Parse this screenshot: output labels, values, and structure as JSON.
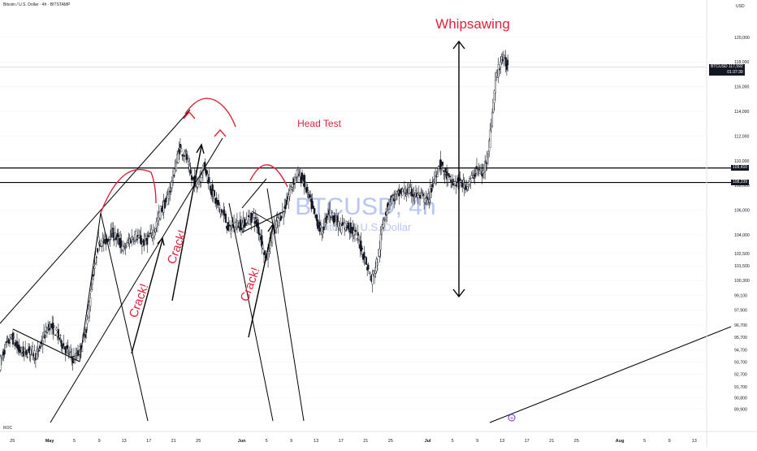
{
  "header": {
    "title": "Bitcoin / U.S. Dollar · 4h · BITSTAMP",
    "currency": "USD",
    "indicator": "ROC"
  },
  "watermark": {
    "symbol": "BTCUSD, 4h",
    "name": "Bitcoin / U.S. Dollar"
  },
  "price_tag": {
    "symbol": "BTCUSD",
    "price": "117,592",
    "countdown": "01:37:39"
  },
  "levels": [
    {
      "label": "109,410",
      "value": 109410
    },
    {
      "label": "108,239",
      "value": 108239
    }
  ],
  "annotations": {
    "whipsawing": "Whipsawing",
    "head_test": "Head Test",
    "crack": "Crack!"
  },
  "colors": {
    "annotation_red": "#e0223b",
    "candle": "#131722",
    "line": "#000000",
    "grid": "#d6d6d6",
    "watermark": "#b9c6f0"
  },
  "chart_data": {
    "type": "candlestick",
    "title": "Bitcoin / U.S. Dollar · 4h · BITSTAMP",
    "ylabel": "USD",
    "ylim": [
      88800,
      121700
    ],
    "y_ticks": [
      {
        "label": "120,000",
        "value": 120000
      },
      {
        "label": "118,000",
        "value": 118000
      },
      {
        "label": "116,000",
        "value": 116000
      },
      {
        "label": "114,000",
        "value": 114000
      },
      {
        "label": "112,000",
        "value": 112000
      },
      {
        "label": "110,000",
        "value": 110000
      },
      {
        "label": "108,000",
        "value": 108000
      },
      {
        "label": "106,000",
        "value": 106000
      },
      {
        "label": "104,000",
        "value": 104000
      },
      {
        "label": "102,500",
        "value": 102500
      },
      {
        "label": "101,500",
        "value": 101500
      },
      {
        "label": "100,300",
        "value": 100300
      },
      {
        "label": "99,100",
        "value": 99100
      },
      {
        "label": "97,900",
        "value": 97900
      },
      {
        "label": "96,700",
        "value": 96700
      },
      {
        "label": "95,700",
        "value": 95700
      },
      {
        "label": "94,700",
        "value": 94700
      },
      {
        "label": "93,700",
        "value": 93700
      },
      {
        "label": "92,700",
        "value": 92700
      },
      {
        "label": "91,700",
        "value": 91700
      },
      {
        "label": "90,800",
        "value": 90800
      },
      {
        "label": "89,900",
        "value": 89900
      }
    ],
    "x_ticks": [
      {
        "label": "25",
        "day": -6
      },
      {
        "label": "May",
        "day": 0
      },
      {
        "label": "5",
        "day": 4
      },
      {
        "label": "9",
        "day": 8
      },
      {
        "label": "13",
        "day": 12
      },
      {
        "label": "17",
        "day": 16
      },
      {
        "label": "21",
        "day": 20
      },
      {
        "label": "25",
        "day": 24
      },
      {
        "label": "Jun",
        "day": 31
      },
      {
        "label": "5",
        "day": 35
      },
      {
        "label": "9",
        "day": 39
      },
      {
        "label": "13",
        "day": 43
      },
      {
        "label": "17",
        "day": 47
      },
      {
        "label": "21",
        "day": 51
      },
      {
        "label": "25",
        "day": 55
      },
      {
        "label": "Jul",
        "day": 61
      },
      {
        "label": "5",
        "day": 65
      },
      {
        "label": "9",
        "day": 69
      },
      {
        "label": "13",
        "day": 73
      },
      {
        "label": "17",
        "day": 77
      },
      {
        "label": "21",
        "day": 81
      },
      {
        "label": "25",
        "day": 85
      },
      {
        "label": "Aug",
        "day": 92
      },
      {
        "label": "5",
        "day": 96
      },
      {
        "label": "9",
        "day": 100
      },
      {
        "label": "13",
        "day": 104
      }
    ],
    "x_range_days": [
      -8,
      106
    ],
    "last_price": 117592,
    "horizontal_levels": [
      109410,
      108239
    ],
    "series": [
      {
        "values": [
          [
            -8.0,
            93500
          ],
          [
            -7.0,
            95000
          ],
          [
            -6.0,
            95700
          ],
          [
            -5.0,
            94700
          ],
          [
            -4.0,
            94400
          ],
          [
            -3.0,
            94700
          ],
          [
            -2.0,
            94200
          ],
          [
            -1.0,
            95600
          ],
          [
            0.0,
            96700
          ],
          [
            1.0,
            96200
          ],
          [
            2.0,
            95300
          ],
          [
            3.0,
            94500
          ],
          [
            4.0,
            93900
          ],
          [
            5.0,
            94700
          ],
          [
            6.0,
            96400
          ],
          [
            7.0,
            100500
          ],
          [
            8.0,
            103500
          ],
          [
            9.0,
            103400
          ],
          [
            10.0,
            104200
          ],
          [
            11.0,
            103700
          ],
          [
            12.0,
            102800
          ],
          [
            13.0,
            103600
          ],
          [
            14.0,
            104000
          ],
          [
            15.0,
            103300
          ],
          [
            16.0,
            103700
          ],
          [
            17.0,
            104400
          ],
          [
            18.0,
            106000
          ],
          [
            19.0,
            106800
          ],
          [
            20.0,
            108700
          ],
          [
            21.0,
            111000
          ],
          [
            22.0,
            110500
          ],
          [
            23.0,
            108500
          ],
          [
            24.0,
            108200
          ],
          [
            25.0,
            109700
          ],
          [
            26.0,
            107900
          ],
          [
            27.0,
            106500
          ],
          [
            28.0,
            105800
          ],
          [
            29.0,
            104400
          ],
          [
            30.0,
            104900
          ],
          [
            31.0,
            104800
          ],
          [
            32.0,
            105200
          ],
          [
            33.0,
            105500
          ],
          [
            34.0,
            104100
          ],
          [
            35.0,
            101900
          ],
          [
            36.0,
            104200
          ],
          [
            37.0,
            105300
          ],
          [
            38.0,
            106100
          ],
          [
            39.0,
            107800
          ],
          [
            40.0,
            109000
          ],
          [
            41.0,
            108400
          ],
          [
            42.0,
            106900
          ],
          [
            43.0,
            105300
          ],
          [
            44.0,
            104200
          ],
          [
            45.0,
            105900
          ],
          [
            46.0,
            105400
          ],
          [
            47.0,
            104600
          ],
          [
            48.0,
            104800
          ],
          [
            49.0,
            104300
          ],
          [
            50.0,
            103500
          ],
          [
            51.0,
            101900
          ],
          [
            52.0,
            100300
          ],
          [
            53.0,
            102000
          ],
          [
            54.0,
            105400
          ],
          [
            55.0,
            106900
          ],
          [
            56.0,
            107100
          ],
          [
            57.0,
            107500
          ],
          [
            58.0,
            107500
          ],
          [
            59.0,
            107300
          ],
          [
            60.0,
            107100
          ],
          [
            61.0,
            106700
          ],
          [
            62.0,
            108300
          ],
          [
            63.0,
            109800
          ],
          [
            64.0,
            108800
          ],
          [
            65.0,
            108100
          ],
          [
            66.0,
            108300
          ],
          [
            67.0,
            108000
          ],
          [
            68.0,
            108400
          ],
          [
            69.0,
            109300
          ],
          [
            70.0,
            108900
          ],
          [
            71.0,
            111400
          ],
          [
            72.0,
            116500
          ],
          [
            73.0,
            118400
          ],
          [
            74.0,
            117600
          ]
        ]
      }
    ]
  }
}
